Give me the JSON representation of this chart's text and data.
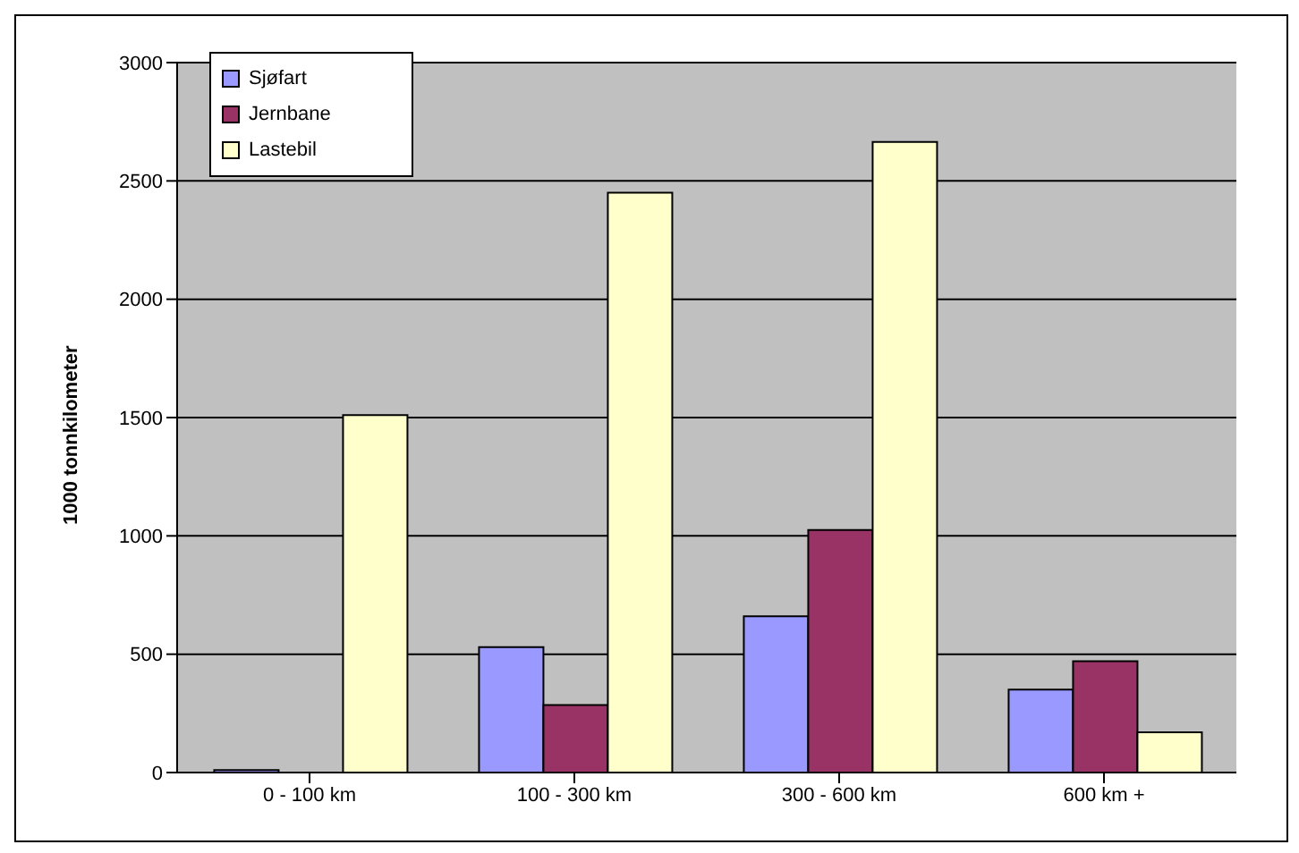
{
  "chart_data": {
    "type": "bar",
    "ylabel": "1000 tonnkilometer",
    "categories": [
      "0 - 100 km",
      "100 - 300 km",
      "300 - 600 km",
      "600 km +"
    ],
    "series": [
      {
        "name": "Sjøfart",
        "color": "#9999ff",
        "values": [
          10,
          530,
          660,
          350
        ]
      },
      {
        "name": "Jernbane",
        "color": "#993366",
        "values": [
          0,
          285,
          1025,
          470
        ]
      },
      {
        "name": "Lastebil",
        "color": "#ffffcc",
        "values": [
          1510,
          2450,
          2665,
          170
        ]
      }
    ],
    "ylim": [
      0,
      3000
    ],
    "yticks": [
      0,
      500,
      1000,
      1500,
      2000,
      2500,
      3000
    ],
    "grid": "y",
    "legend": "top left"
  }
}
